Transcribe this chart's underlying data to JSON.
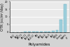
{
  "title": "",
  "xlabel": "Polyamides",
  "ylabel": "OTR (cc/m²/day)",
  "categories": [
    "PA12",
    "PA11",
    "PA6.10",
    "PA6.12",
    "PA10.10",
    "PA10.12",
    "PA6",
    "PA66",
    "PA4.6",
    "PA6.9",
    "PA6I",
    "MXD6",
    "Grivory\nHV",
    "Grivory\nHT"
  ],
  "values": [
    0.05,
    0.08,
    0.1,
    0.12,
    0.15,
    0.18,
    0.22,
    0.28,
    0.35,
    0.45,
    0.6,
    1.2,
    8.0,
    18.0
  ],
  "bar_color": "#9ecfdc",
  "bar_edge_color": "#5baabb",
  "background_color": "#d4d4d4",
  "plot_bg_color": "#eaeaea",
  "grid_color": "#ffffff",
  "ylabel_fontsize": 3.5,
  "xlabel_fontsize": 4,
  "tick_fontsize": 3,
  "ylim": [
    0,
    20
  ],
  "use_log": false
}
